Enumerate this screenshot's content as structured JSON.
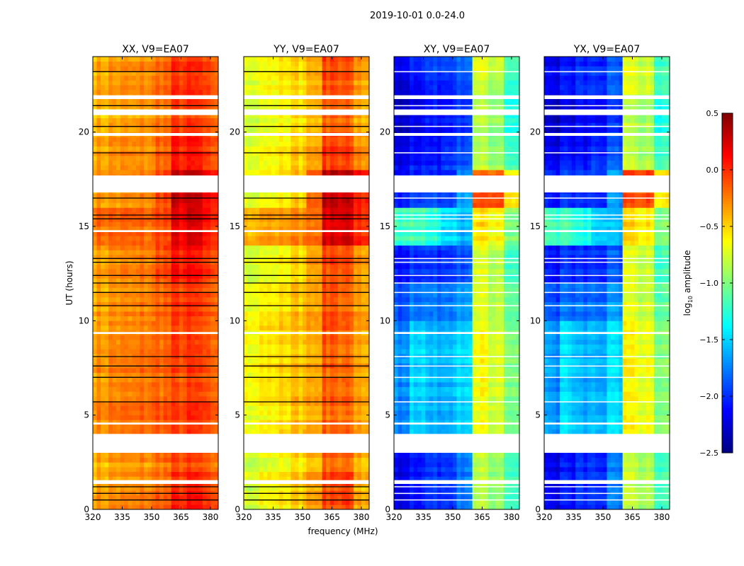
{
  "chart_data": {
    "type": "heatmap",
    "title": "2019-10-01 0.0-24.0",
    "xlabel": "frequency (MHz)",
    "ylabel": "UT (hours)",
    "xlim": [
      320,
      384
    ],
    "ylim": [
      0,
      24
    ],
    "xticks": [
      "320",
      "335",
      "350",
      "365",
      "380"
    ],
    "xtick_values": [
      320,
      335,
      350,
      365,
      380
    ],
    "yticks": [
      "0",
      "5",
      "10",
      "15",
      "20"
    ],
    "ytick_values": [
      0,
      5,
      10,
      15,
      20
    ],
    "colorbar": {
      "label": "log",
      "label_sub": "10",
      "label_rest": " amplitude",
      "range": [
        -2.5,
        0.5
      ],
      "ticks": [
        "0.5",
        "0.0",
        "−0.5",
        "−1.0",
        "−1.5",
        "−2.0",
        "−2.5"
      ],
      "tick_values": [
        0.5,
        0.0,
        -0.5,
        -1.0,
        -1.5,
        -2.0,
        -2.5
      ],
      "colormap": "jet"
    },
    "time_bin_edges_hours": [
      0,
      2,
      4,
      6,
      8,
      10,
      12,
      14,
      16,
      18,
      20,
      22,
      24
    ],
    "freq_bin_edges_mhz": [
      320,
      328,
      336,
      344,
      352,
      360,
      368,
      376,
      384
    ],
    "flagged_time_ranges_hours": [
      [
        3.0,
        4.0
      ],
      [
        1.35,
        1.55
      ],
      [
        16.8,
        17.7
      ],
      [
        20.9,
        21.2
      ],
      [
        21.75,
        21.95
      ],
      [
        19.8,
        19.95
      ],
      [
        14.7,
        14.8
      ],
      [
        4.5,
        4.6
      ],
      [
        9.3,
        9.4
      ]
    ],
    "scan_boundaries_hours": [
      0.5,
      0.85,
      1.2,
      5.7,
      7.0,
      7.6,
      8.1,
      10.8,
      11.5,
      12.0,
      12.4,
      13.1,
      13.3,
      15.4,
      15.6,
      16.5,
      18.9,
      20.3,
      21.4,
      23.2
    ],
    "panels": [
      {
        "title": "XX, V9=EA07",
        "values": [
          [
            -0.35,
            -0.3,
            -0.3,
            -0.25,
            -0.15,
            0.0,
            0.05,
            -0.1
          ],
          [
            -0.4,
            -0.35,
            -0.35,
            -0.3,
            -0.2,
            -0.1,
            -0.1,
            -0.2
          ],
          [
            -0.3,
            -0.25,
            -0.25,
            -0.2,
            -0.15,
            -0.1,
            -0.05,
            -0.15
          ],
          [
            -0.3,
            -0.25,
            -0.25,
            -0.2,
            -0.15,
            -0.1,
            -0.05,
            -0.15
          ],
          [
            -0.3,
            -0.25,
            -0.25,
            -0.2,
            -0.15,
            -0.05,
            -0.05,
            -0.15
          ],
          [
            -0.35,
            -0.3,
            -0.3,
            -0.25,
            -0.15,
            -0.05,
            -0.05,
            -0.15
          ],
          [
            -0.35,
            -0.3,
            -0.3,
            -0.25,
            -0.1,
            0.05,
            0.05,
            -0.1
          ],
          [
            -0.2,
            -0.2,
            -0.2,
            -0.2,
            -0.1,
            0.15,
            0.2,
            0.0
          ],
          [
            -0.3,
            -0.3,
            -0.3,
            -0.25,
            -0.05,
            0.3,
            0.3,
            0.1
          ],
          [
            -0.35,
            -0.3,
            -0.3,
            -0.3,
            -0.15,
            0.05,
            0.05,
            -0.1
          ],
          [
            -0.45,
            -0.4,
            -0.4,
            -0.35,
            -0.25,
            -0.1,
            -0.1,
            -0.2
          ],
          [
            -0.4,
            -0.35,
            -0.35,
            -0.3,
            -0.2,
            -0.05,
            -0.05,
            -0.15
          ]
        ]
      },
      {
        "title": "YY, V9=EA07",
        "values": [
          [
            -0.75,
            -0.65,
            -0.6,
            -0.5,
            -0.3,
            -0.1,
            -0.05,
            -0.4
          ],
          [
            -0.75,
            -0.7,
            -0.65,
            -0.55,
            -0.35,
            -0.15,
            -0.15,
            -0.4
          ],
          [
            -0.65,
            -0.6,
            -0.55,
            -0.45,
            -0.3,
            -0.15,
            -0.15,
            -0.35
          ],
          [
            -0.6,
            -0.55,
            -0.5,
            -0.45,
            -0.3,
            -0.15,
            -0.15,
            -0.35
          ],
          [
            -0.6,
            -0.55,
            -0.5,
            -0.45,
            -0.3,
            -0.1,
            -0.15,
            -0.35
          ],
          [
            -0.65,
            -0.6,
            -0.55,
            -0.45,
            -0.3,
            -0.1,
            -0.15,
            -0.35
          ],
          [
            -0.7,
            -0.65,
            -0.6,
            -0.5,
            -0.25,
            -0.05,
            -0.05,
            -0.3
          ],
          [
            -0.4,
            -0.35,
            -0.35,
            -0.3,
            -0.15,
            0.2,
            0.25,
            0.0
          ],
          [
            -0.7,
            -0.65,
            -0.6,
            -0.5,
            -0.1,
            0.3,
            0.3,
            0.05
          ],
          [
            -0.7,
            -0.65,
            -0.6,
            -0.5,
            -0.3,
            -0.05,
            -0.05,
            -0.3
          ],
          [
            -0.75,
            -0.7,
            -0.65,
            -0.55,
            -0.35,
            -0.15,
            -0.15,
            -0.4
          ],
          [
            -0.7,
            -0.65,
            -0.6,
            -0.55,
            -0.35,
            -0.1,
            -0.1,
            -0.35
          ]
        ]
      },
      {
        "title": "XY, V9=EA07",
        "values": [
          [
            -2.2,
            -2.1,
            -2.0,
            -2.0,
            -1.8,
            -0.8,
            -0.9,
            -1.2
          ],
          [
            -2.2,
            -2.1,
            -2.0,
            -2.0,
            -1.8,
            -0.8,
            -0.9,
            -1.2
          ],
          [
            -1.7,
            -1.5,
            -1.6,
            -1.6,
            -1.5,
            -0.6,
            -0.7,
            -1.0
          ],
          [
            -1.7,
            -1.5,
            -1.6,
            -1.6,
            -1.5,
            -0.6,
            -0.7,
            -1.0
          ],
          [
            -1.7,
            -1.5,
            -1.6,
            -1.6,
            -1.5,
            -0.6,
            -0.7,
            -1.0
          ],
          [
            -1.9,
            -1.8,
            -1.8,
            -1.8,
            -1.7,
            -0.7,
            -0.8,
            -1.1
          ],
          [
            -2.1,
            -2.0,
            -2.0,
            -2.0,
            -1.9,
            -0.7,
            -0.8,
            -1.2
          ],
          [
            -1.2,
            -1.2,
            -1.3,
            -1.5,
            -1.6,
            -0.5,
            -0.6,
            -1.0
          ],
          [
            -2.1,
            -2.0,
            -2.0,
            -2.0,
            -1.7,
            -0.1,
            -0.1,
            -0.6
          ],
          [
            -2.2,
            -2.1,
            -2.1,
            -2.0,
            -1.9,
            -0.8,
            -0.9,
            -1.2
          ],
          [
            -2.3,
            -2.2,
            -2.1,
            -2.1,
            -2.0,
            -0.8,
            -0.9,
            -1.3
          ],
          [
            -2.2,
            -2.1,
            -2.0,
            -2.0,
            -1.9,
            -0.7,
            -0.8,
            -1.2
          ]
        ]
      },
      {
        "title": "YX, V9=EA07",
        "values": [
          [
            -2.2,
            -2.1,
            -2.0,
            -2.0,
            -1.8,
            -0.8,
            -0.9,
            -1.2
          ],
          [
            -2.2,
            -2.1,
            -2.0,
            -2.0,
            -1.8,
            -0.8,
            -0.9,
            -1.2
          ],
          [
            -1.7,
            -1.5,
            -1.6,
            -1.6,
            -1.5,
            -0.6,
            -0.7,
            -1.0
          ],
          [
            -1.7,
            -1.5,
            -1.6,
            -1.6,
            -1.5,
            -0.6,
            -0.7,
            -1.0
          ],
          [
            -1.7,
            -1.5,
            -1.6,
            -1.6,
            -1.5,
            -0.6,
            -0.7,
            -1.0
          ],
          [
            -1.9,
            -1.8,
            -1.8,
            -1.8,
            -1.7,
            -0.7,
            -0.8,
            -1.1
          ],
          [
            -2.1,
            -2.0,
            -2.0,
            -2.0,
            -1.9,
            -0.7,
            -0.8,
            -1.2
          ],
          [
            -1.2,
            -1.2,
            -1.3,
            -1.5,
            -1.6,
            -0.5,
            -0.6,
            -1.0
          ],
          [
            -2.1,
            -2.0,
            -2.0,
            -2.0,
            -1.7,
            -0.1,
            -0.1,
            -0.6
          ],
          [
            -2.2,
            -2.1,
            -2.1,
            -2.0,
            -1.9,
            -0.8,
            -0.9,
            -1.2
          ],
          [
            -2.3,
            -2.2,
            -2.1,
            -2.1,
            -2.0,
            -0.8,
            -0.9,
            -1.3
          ],
          [
            -2.2,
            -2.1,
            -2.0,
            -2.0,
            -1.9,
            -0.7,
            -0.8,
            -1.2
          ]
        ]
      }
    ]
  }
}
